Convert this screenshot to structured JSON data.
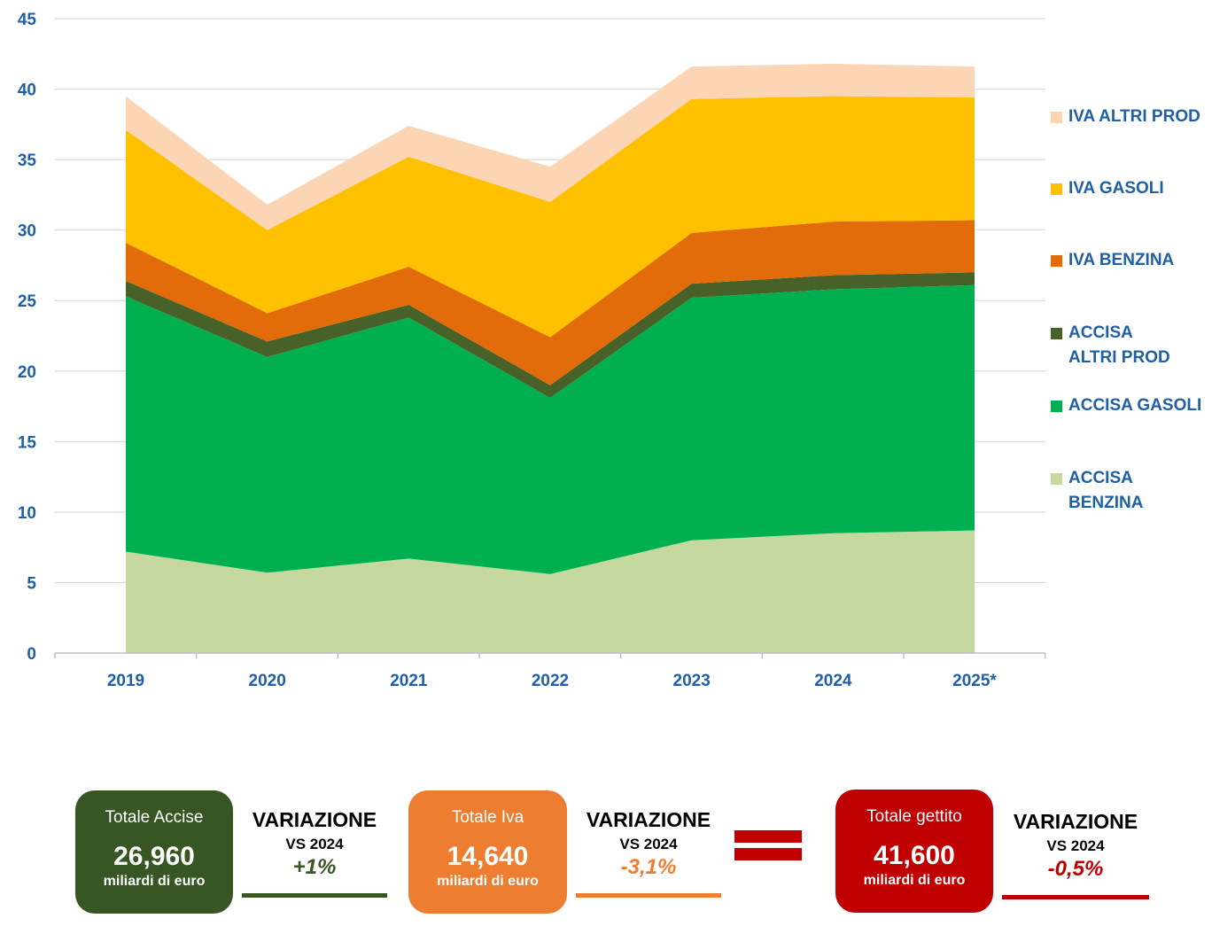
{
  "chart_data": {
    "type": "area",
    "stacked": true,
    "categories": [
      "2019",
      "2020",
      "2021",
      "2022",
      "2023",
      "2024",
      "2025*"
    ],
    "ylim": [
      0,
      45
    ],
    "yticks": [
      "0",
      "5",
      "10",
      "15",
      "20",
      "25",
      "30",
      "35",
      "40",
      "45"
    ],
    "grid": true,
    "legend_position": "right",
    "series": [
      {
        "name": "ACCISA BENZINA",
        "color": "#c5d89f",
        "values": [
          7.2,
          5.7,
          6.7,
          5.6,
          8.0,
          8.5,
          8.7
        ]
      },
      {
        "name": "ACCISA GASOLI",
        "color": "#00b050",
        "values": [
          18.1,
          15.3,
          17.1,
          12.5,
          17.2,
          17.3,
          17.4
        ]
      },
      {
        "name": "ACCISA ALTRI PROD",
        "color": "#476128",
        "values": [
          1.1,
          1.1,
          0.9,
          0.9,
          1.0,
          1.0,
          0.9
        ]
      },
      {
        "name": "IVA BENZINA",
        "color": "#e26b0a",
        "values": [
          2.7,
          2.0,
          2.7,
          3.4,
          3.6,
          3.8,
          3.7
        ]
      },
      {
        "name": "IVA GASOLI",
        "color": "#ffc000",
        "values": [
          8.0,
          5.9,
          7.8,
          9.6,
          9.5,
          8.9,
          8.7
        ]
      },
      {
        "name": "IVA ALTRI PROD",
        "color": "#fcd5b5",
        "values": [
          2.4,
          1.8,
          2.2,
          2.5,
          2.3,
          2.3,
          2.2
        ]
      }
    ]
  },
  "legend": [
    {
      "label": "IVA ALTRI PROD",
      "color": "#fcd5b5"
    },
    {
      "label": "IVA GASOLI",
      "color": "#ffc000"
    },
    {
      "label": "IVA BENZINA",
      "color": "#e26b0a"
    },
    {
      "label": "ACCISA ALTRI PROD",
      "color": "#476128"
    },
    {
      "label": "ACCISA GASOLI",
      "color": "#00b050"
    },
    {
      "label": "ACCISA BENZINA",
      "color": "#c5d89f"
    }
  ],
  "summary": {
    "accise": {
      "title": "Totale Accise",
      "value": "26,960",
      "unit": "miliardi di euro",
      "color": "#375623",
      "var_title": "VARIAZIONE",
      "var_sub": "VS 2024",
      "var_value": "+1%",
      "var_color": "#375623"
    },
    "iva": {
      "title": "Totale Iva",
      "value": "14,640",
      "unit": "miliardi di euro",
      "color": "#ed7d31",
      "var_title": "VARIAZIONE",
      "var_sub": "VS 2024",
      "var_value": "-3,1%",
      "var_color": "#ed7d31"
    },
    "gettito": {
      "title": "Totale gettito",
      "value": "41,600",
      "unit": "miliardi di euro",
      "color": "#c00000",
      "var_title": "VARIAZIONE",
      "var_sub": "VS 2024",
      "var_value": "-0,5%",
      "var_color": "#c00000"
    }
  }
}
